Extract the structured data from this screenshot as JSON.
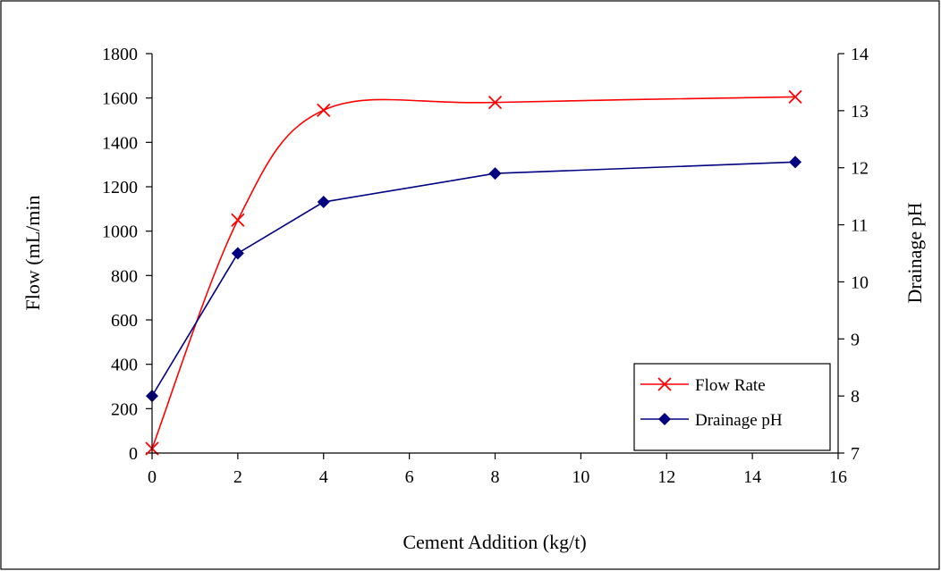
{
  "chart_data": {
    "type": "line",
    "xlabel": "Cement Addition (kg/t)",
    "ylabel": "Flow (mL/min",
    "y2label": "Drainage pH",
    "xlim": [
      0,
      16
    ],
    "ylim": [
      0,
      1800
    ],
    "y2lim": [
      7,
      14
    ],
    "x_ticks": [
      "0",
      "2",
      "4",
      "6",
      "8",
      "10",
      "12",
      "14",
      "16"
    ],
    "y_ticks": [
      "0",
      "200",
      "400",
      "600",
      "800",
      "1000",
      "1200",
      "1400",
      "1600",
      "1800"
    ],
    "y2_ticks": [
      "7",
      "8",
      "9",
      "10",
      "11",
      "12",
      "13",
      "14"
    ],
    "grid": false,
    "legend_position": "bottom-right",
    "series": [
      {
        "name": "Flow Rate",
        "axis": "left",
        "color": "#ff0000",
        "marker": "x",
        "smooth": true,
        "x": [
          0,
          2,
          4,
          8,
          15
        ],
        "values": [
          20,
          1050,
          1545,
          1580,
          1605
        ]
      },
      {
        "name": "Drainage pH",
        "axis": "right",
        "color": "#000080",
        "marker": "diamond",
        "smooth": false,
        "x": [
          0,
          2,
          4,
          8,
          15
        ],
        "values": [
          8.0,
          10.5,
          11.4,
          11.9,
          12.1
        ]
      }
    ]
  }
}
